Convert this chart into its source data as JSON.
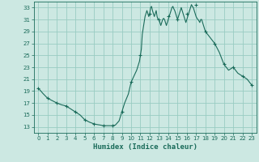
{
  "xlabel": "Humidex (Indice chaleur)",
  "background_color": "#cce8e2",
  "grid_color": "#99ccc2",
  "line_color": "#1a6b5a",
  "xlim": [
    -0.5,
    23.5
  ],
  "ylim": [
    12,
    34
  ],
  "yticks": [
    13,
    15,
    17,
    19,
    21,
    23,
    25,
    27,
    29,
    31,
    33
  ],
  "xticks": [
    0,
    1,
    2,
    3,
    4,
    5,
    6,
    7,
    8,
    9,
    10,
    11,
    12,
    13,
    14,
    15,
    16,
    17,
    18,
    19,
    20,
    21,
    22,
    23
  ],
  "x_line": [
    0,
    0.5,
    1,
    1.5,
    2,
    2.5,
    3,
    3.5,
    4,
    4.5,
    5,
    5.5,
    6,
    6.3,
    6.7,
    7,
    7.3,
    7.7,
    8,
    8.3,
    8.7,
    9,
    9.3,
    9.7,
    10,
    10.3,
    10.6,
    10.9,
    11,
    11.1,
    11.2,
    11.3,
    11.4,
    11.5,
    11.6,
    11.7,
    11.8,
    11.9,
    12,
    12.1,
    12.2,
    12.3,
    12.4,
    12.5,
    12.6,
    12.7,
    12.8,
    12.9,
    13,
    13.1,
    13.2,
    13.3,
    13.4,
    13.5,
    13.6,
    13.7,
    13.8,
    13.9,
    14,
    14.1,
    14.2,
    14.3,
    14.4,
    14.5,
    14.6,
    14.7,
    14.8,
    14.9,
    15,
    15.1,
    15.2,
    15.3,
    15.4,
    15.5,
    15.6,
    15.7,
    15.8,
    15.9,
    16,
    16.1,
    16.2,
    16.3,
    16.4,
    16.5,
    16.6,
    16.7,
    16.8,
    16.9,
    17,
    17.1,
    17.2,
    17.3,
    17.4,
    17.5,
    17.6,
    17.7,
    17.8,
    17.9,
    18,
    18.5,
    19,
    19.5,
    20,
    20.5,
    21,
    21.5,
    22,
    22.5,
    23
  ],
  "y_line": [
    19.5,
    18.6,
    17.8,
    17.4,
    17.0,
    16.7,
    16.5,
    16.0,
    15.5,
    15.0,
    14.2,
    13.8,
    13.5,
    13.4,
    13.3,
    13.2,
    13.2,
    13.2,
    13.2,
    13.3,
    14.0,
    15.5,
    17.0,
    18.5,
    20.5,
    21.5,
    22.5,
    24.0,
    25.0,
    26.0,
    28.5,
    29.5,
    30.5,
    31.5,
    32.0,
    32.5,
    32.0,
    31.5,
    32.0,
    33.0,
    33.2,
    32.5,
    32.0,
    31.5,
    32.0,
    32.5,
    31.5,
    31.0,
    31.0,
    30.5,
    30.0,
    30.5,
    31.0,
    31.2,
    31.0,
    30.5,
    30.0,
    30.5,
    31.0,
    31.5,
    32.0,
    32.5,
    33.0,
    33.2,
    32.8,
    32.5,
    32.0,
    31.5,
    31.0,
    31.5,
    32.0,
    32.5,
    33.0,
    32.5,
    32.0,
    31.5,
    31.0,
    30.5,
    31.0,
    31.5,
    32.0,
    32.5,
    33.0,
    33.5,
    33.2,
    33.0,
    32.5,
    32.0,
    31.5,
    31.2,
    31.0,
    30.8,
    30.5,
    31.0,
    31.0,
    30.5,
    30.0,
    29.5,
    29.0,
    28.0,
    27.0,
    25.5,
    23.5,
    22.5,
    23.0,
    22.0,
    21.5,
    21.0,
    20.0
  ],
  "marker_x": [
    0,
    1,
    2,
    3,
    4,
    5,
    6,
    7,
    8,
    9,
    10,
    11,
    12,
    13,
    14,
    15,
    16,
    17,
    18,
    19,
    20,
    21,
    22,
    23
  ],
  "marker_y": [
    19.5,
    17.8,
    17.0,
    16.5,
    15.5,
    14.2,
    13.5,
    13.2,
    13.2,
    15.5,
    20.5,
    25.0,
    32.0,
    31.0,
    31.5,
    31.0,
    32.0,
    33.5,
    29.0,
    27.0,
    23.5,
    23.0,
    21.5,
    20.0
  ]
}
